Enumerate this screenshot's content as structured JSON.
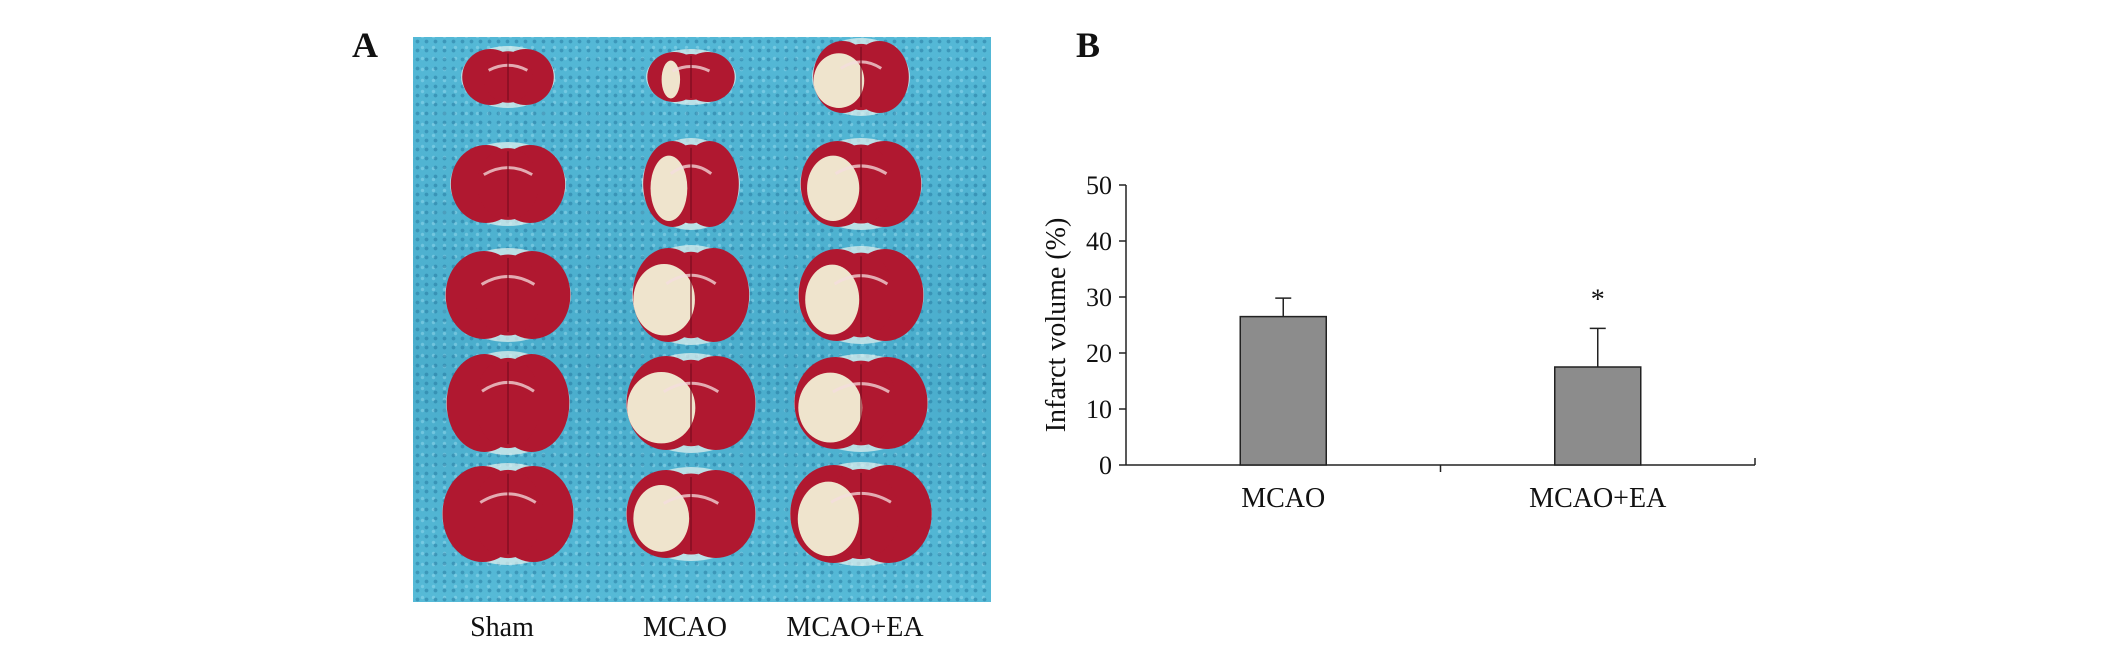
{
  "panel_a": {
    "label": "A",
    "groups": [
      {
        "label": "Sham"
      },
      {
        "label": "MCAO"
      },
      {
        "label": "MCAO+EA"
      }
    ],
    "colors": {
      "background": "#4fb3d2",
      "tissue": "#b01830",
      "infarct": "#f2efd6"
    }
  },
  "panel_b": {
    "label": "B",
    "chart_data": {
      "type": "bar",
      "categories": [
        "MCAO",
        "MCAO+EA"
      ],
      "values": [
        26.5,
        17.5
      ],
      "errors": [
        3.3,
        6.9
      ],
      "significance": [
        "",
        "*"
      ],
      "ylabel": "Infarct volume (%)",
      "xlabel": "",
      "ylim": [
        0,
        50
      ],
      "yticks": [
        0,
        10,
        20,
        30,
        40,
        50
      ],
      "bar_color": "#8c8c8c",
      "grid": false,
      "legend": "none"
    }
  }
}
